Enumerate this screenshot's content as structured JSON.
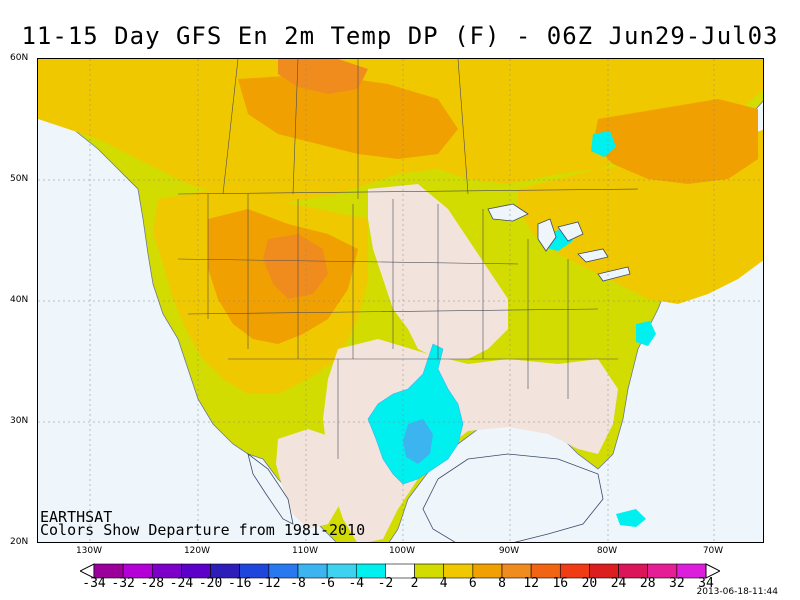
{
  "title": "11-15 Day GFS En 2m Temp DP (F) - 06Z Jun29-Jul03",
  "credit_line1": "EARTHSAT",
  "credit_line2": "Colors Show Departure from 1981-2010",
  "timestamp": "2013-06-18-11:44",
  "lat_labels": [
    "60N",
    "50N",
    "40N",
    "30N",
    "20N"
  ],
  "lon_labels": [
    "130W",
    "120W",
    "110W",
    "100W",
    "90W",
    "80W",
    "70W"
  ],
  "colorbar": {
    "labels": [
      "-34",
      "-32",
      "-28",
      "-24",
      "-20",
      "-16",
      "-12",
      "-8",
      "-6",
      "-4",
      "-2",
      "2",
      "4",
      "6",
      "8",
      "12",
      "16",
      "20",
      "24",
      "28",
      "32",
      "34"
    ],
    "colors": [
      "#9b009b",
      "#b400d7",
      "#7d00c8",
      "#5a00c8",
      "#2d1eb9",
      "#1e46dc",
      "#2878f0",
      "#3cb4f0",
      "#3cd2f0",
      "#00f0f0",
      "#ffffff",
      "#d2dc00",
      "#f0c800",
      "#f0a000",
      "#f08c1e",
      "#f06414",
      "#f03c14",
      "#dc1e1e",
      "#dc145a",
      "#e61e96",
      "#dc1edc"
    ]
  },
  "colors": {
    "ocean": "#eef6fb",
    "neutral_land": "#f2e4dc",
    "warm_yellow": "#d2dc00",
    "warm_gold": "#f0c800",
    "warm_orange": "#f0a000",
    "warm_dark": "#f08c1e",
    "cool_cyan": "#00f0f0",
    "cool_blue": "#3cb4f0"
  }
}
